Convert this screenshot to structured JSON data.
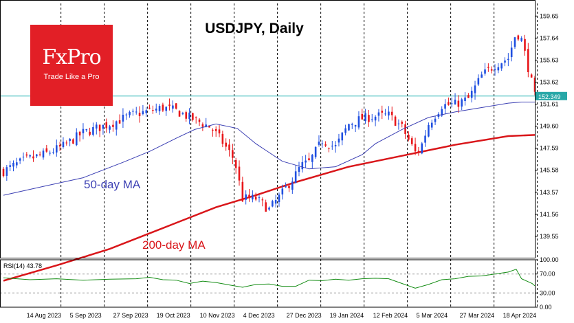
{
  "title": "USDJPY, Daily",
  "logo": {
    "brand": "FxPro",
    "tagline": "Trade Like a Pro"
  },
  "colors": {
    "bull": "#1f4fe0",
    "bear": "#e8161a",
    "ma50": "#3b3fb3",
    "ma200": "#d9161a",
    "rsi": "#138c13",
    "current_line": "#2fb7b7",
    "price_tag": "#27a7a7"
  },
  "chart_data": {
    "type": "candlestick",
    "title": "USDJPY, Daily",
    "price_axis": {
      "ticks": [
        "159.65",
        "157.64",
        "155.63",
        "153.62",
        "151.61",
        "149.60",
        "147.59",
        "145.58",
        "143.57",
        "141.56",
        "139.55"
      ],
      "ylim": [
        137.6,
        160.8
      ]
    },
    "time_axis": {
      "ticks": [
        "14 Aug 2023",
        "5 Sep 2023",
        "27 Sep 2023",
        "19 Oct 2023",
        "10 Nov 2023",
        "4 Dec 2023",
        "27 Dec 2023",
        "19 Jan 2024",
        "12 Feb 2024",
        "5 Mar 2024",
        "27 Mar 2024",
        "18 Apr 2024"
      ],
      "xlim": [
        0,
        200
      ]
    },
    "current_price": "152.349",
    "annotations": [
      {
        "text": "50-day MA",
        "color": "#3b3fb3"
      },
      {
        "text": "200-day MA",
        "color": "#d9161a"
      }
    ],
    "series": [
      {
        "name": "50-day MA",
        "x": [
          0,
          15,
          30,
          45,
          55,
          65,
          72,
          80,
          88,
          95,
          105,
          115,
          125,
          135,
          140,
          150,
          160,
          170,
          180,
          190,
          195,
          200
        ],
        "y": [
          143.3,
          144.1,
          144.9,
          146.3,
          147.3,
          148.5,
          149.3,
          149.8,
          149.4,
          148.0,
          146.4,
          145.7,
          145.9,
          147.0,
          148.0,
          149.3,
          150.4,
          150.9,
          151.3,
          151.7,
          151.8,
          151.8
        ]
      },
      {
        "name": "200-day MA",
        "x": [
          0,
          20,
          40,
          60,
          80,
          95,
          110,
          130,
          150,
          170,
          190,
          200
        ],
        "y": [
          135.5,
          136.9,
          138.4,
          140.3,
          142.2,
          143.3,
          144.5,
          145.9,
          146.9,
          147.9,
          148.7,
          148.8
        ]
      }
    ],
    "close_path": {
      "x": [
        0,
        8,
        15,
        22,
        30,
        40,
        48,
        55,
        60,
        65,
        70,
        78,
        82,
        87,
        90,
        95,
        100,
        105,
        110,
        112,
        115,
        120,
        125,
        130,
        135,
        140,
        145,
        150,
        155,
        157,
        160,
        165,
        170,
        175,
        180,
        185,
        190,
        193,
        195,
        197,
        200
      ],
      "y": [
        145.5,
        146.5,
        147.0,
        147.7,
        149.0,
        149.8,
        150.6,
        151.0,
        151.3,
        151.0,
        150.4,
        149.5,
        148.3,
        146.5,
        143.0,
        143.0,
        142.0,
        143.5,
        145.2,
        146.0,
        146.3,
        148.3,
        147.7,
        149.8,
        150.3,
        150.5,
        150.6,
        149.5,
        147.2,
        147.6,
        149.8,
        151.5,
        151.6,
        152.1,
        154.2,
        155.2,
        155.8,
        158.2,
        157.5,
        155.5,
        152.3
      ]
    },
    "rsi": {
      "label": "RSI(14) 43.78",
      "ticks": [
        "100.00",
        "70.00",
        "30.00",
        "0.00"
      ],
      "ylim": [
        0,
        100
      ],
      "x": [
        0,
        10,
        20,
        30,
        40,
        50,
        55,
        60,
        65,
        70,
        75,
        80,
        85,
        90,
        95,
        100,
        105,
        110,
        115,
        120,
        125,
        130,
        135,
        140,
        145,
        150,
        155,
        160,
        165,
        170,
        175,
        180,
        185,
        190,
        193,
        195,
        197,
        199,
        200
      ],
      "y": [
        62,
        58,
        60,
        57,
        59,
        60,
        63,
        58,
        57,
        50,
        55,
        52,
        47,
        42,
        48,
        49,
        44,
        44,
        57,
        56,
        59,
        57,
        60,
        61,
        60,
        50,
        40,
        48,
        58,
        60,
        65,
        66,
        70,
        74,
        80,
        60,
        55,
        50,
        45
      ]
    }
  }
}
